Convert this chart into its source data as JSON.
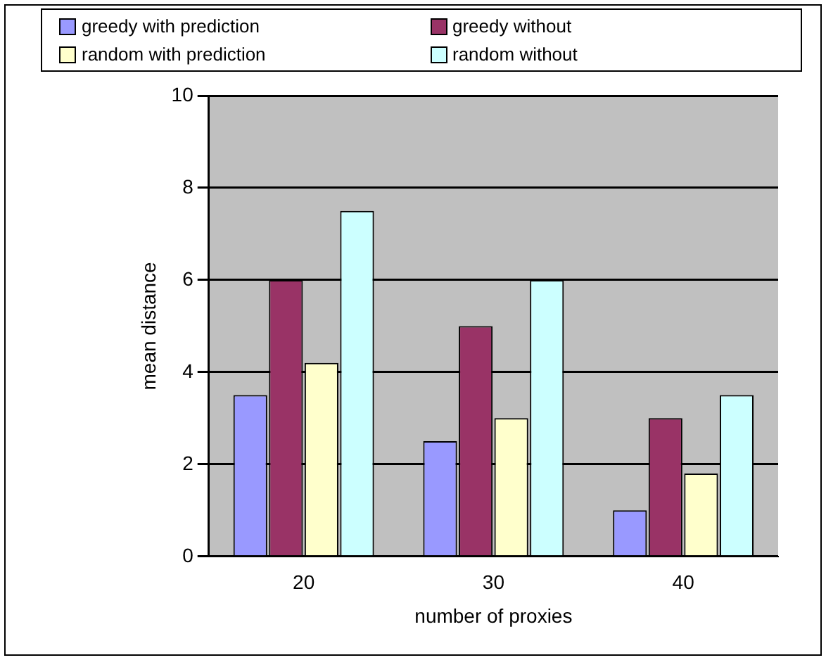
{
  "chart_data": {
    "type": "bar",
    "xlabel": "number of proxies",
    "ylabel": "mean distance",
    "categories": [
      "20",
      "30",
      "40"
    ],
    "series": [
      {
        "name": "greedy with prediction",
        "color": "#9999ff",
        "values": [
          3.5,
          2.5,
          1
        ]
      },
      {
        "name": "greedy without",
        "color": "#993366",
        "values": [
          6,
          5,
          3
        ]
      },
      {
        "name": "random with prediction",
        "color": "#ffffcc",
        "values": [
          4.2,
          3,
          1.8
        ]
      },
      {
        "name": "random without",
        "color": "#ccffff",
        "values": [
          7.5,
          6,
          3.5
        ]
      }
    ],
    "ylim": [
      0,
      10
    ],
    "yticks": [
      0,
      2,
      4,
      6,
      8,
      10
    ],
    "grid": "y",
    "legend": "top"
  }
}
